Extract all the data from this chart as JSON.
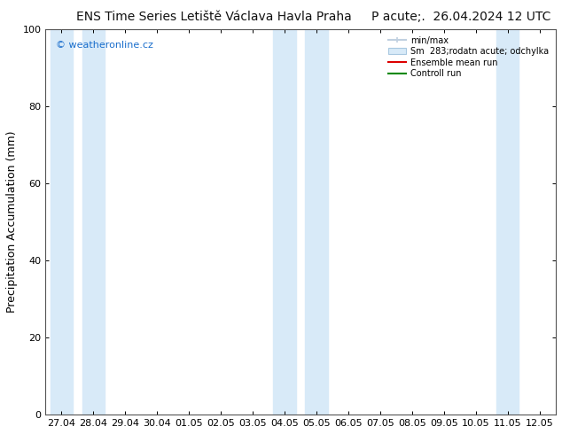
{
  "title_left": "ENS Time Series Letiště Václava Havla Praha",
  "title_right": "P acute;.  26.04.2024 12 UTC",
  "ylabel": "Precipitation Accumulation (mm)",
  "watermark": "© weatheronline.cz",
  "ylim": [
    0,
    100
  ],
  "yticks": [
    0,
    20,
    40,
    60,
    80,
    100
  ],
  "xtick_labels": [
    "27.04",
    "28.04",
    "29.04",
    "30.04",
    "01.05",
    "02.05",
    "03.05",
    "04.05",
    "05.05",
    "06.05",
    "07.05",
    "08.05",
    "09.05",
    "10.05",
    "11.05",
    "12.05"
  ],
  "legend_entries": [
    "min/max",
    "Sm  283;rodatn acute; odchylka",
    "Ensemble mean run",
    "Controll run"
  ],
  "background_color": "#ffffff",
  "plot_bg_color": "#ffffff",
  "shaded_indices": [
    0,
    1,
    7,
    8,
    14
  ],
  "shaded_color": "#d8eaf8",
  "title_fontsize": 10,
  "tick_fontsize": 8,
  "watermark_color": "#1a6ecc",
  "spine_color": "#555555",
  "legend_handle_color_0": "#c0d0e0",
  "legend_handle_color_1": "#d8eaf8",
  "legend_line_red": "#dd0000",
  "legend_line_green": "#008800"
}
